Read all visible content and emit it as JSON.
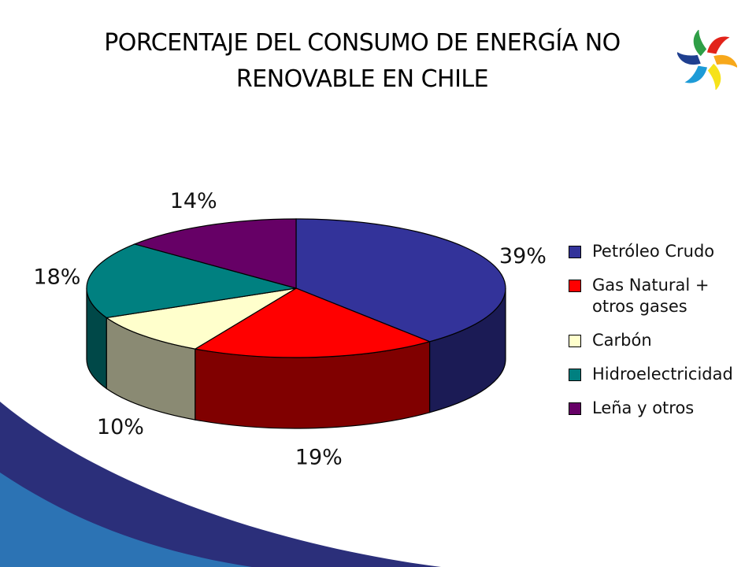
{
  "header": {
    "title": "PORCENTAJE DEL CONSUMO DE ENERGÍA NO RENOVABLE EN CHILE"
  },
  "logo": {
    "icon": "pinwheel-logo-icon"
  },
  "chart_data": {
    "type": "pie",
    "title": "",
    "values": [
      39,
      19,
      10,
      18,
      14
    ],
    "data_labels": [
      "39%",
      "19%",
      "10%",
      "18%",
      "14%"
    ],
    "labels": [
      "Petróleo Crudo",
      "Gas Natural +\notros gases",
      "Carbón",
      "Hidroelectricidad",
      "Leña y otros"
    ],
    "colors": [
      "#33339a",
      "#ff0000",
      "#ffffcc",
      "#008080",
      "#660066"
    ],
    "side_colors": [
      "#1b1b55",
      "#800000",
      "#8a8a73",
      "#004848",
      "#3a003a"
    ],
    "legend_position": "right",
    "three_d": true
  },
  "colors": {
    "swoosh_dark": "#2b2f7a",
    "swoosh_light": "#2c73b4"
  }
}
